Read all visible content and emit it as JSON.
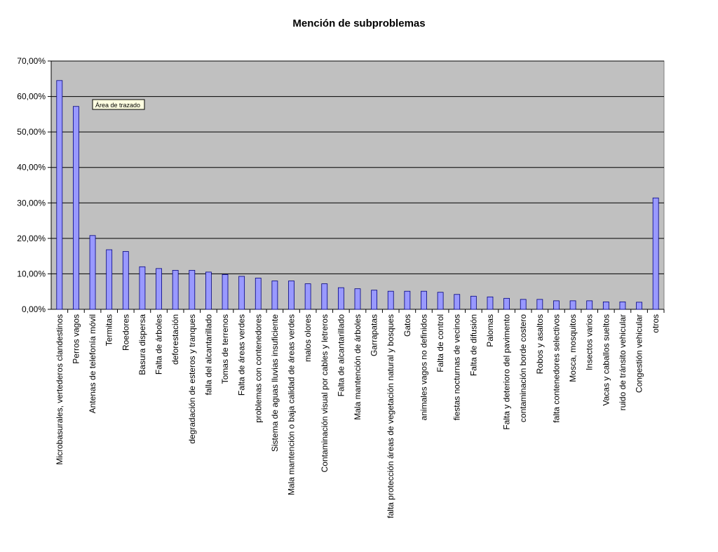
{
  "chart_data": {
    "type": "bar",
    "title": "Mención de subproblemas",
    "xlabel": "",
    "ylabel": "",
    "ylim": [
      0,
      70
    ],
    "y_tick_values": [
      0,
      10,
      20,
      30,
      40,
      50,
      60,
      70
    ],
    "y_tick_labels": [
      "0,00%",
      "10,00%",
      "20,00%",
      "30,00%",
      "40,00%",
      "50,00%",
      "60,00%",
      "70,00%"
    ],
    "grid": true,
    "legend": "none",
    "tooltip": "Área de trazado",
    "categories": [
      "Microbasurales, vertederos clandestinos",
      "Perros vagos",
      "Antenas de telefonía móvil",
      "Termitas",
      "Roedores",
      "Basura dispersa",
      "Falta de árboles",
      "deforestación",
      "degradación de esteros y tranques",
      "falla del alcantarillado",
      "Tomas de terrenos",
      "Falta de áreas verdes",
      "problemas con contenedores",
      "Sistema de aguas lluvias insuficiente",
      "Mala mantención o baja calidad de áreas verdes",
      "malos olores",
      "Contaminación visual por cables y letreros",
      "Falta de alcantarillado",
      "Mala mantención de árboles",
      "Garrapatas",
      "falta protección áreas de vegetación natural y bosques",
      "Gatos",
      "animales vagos no definidos",
      "Falta de control",
      "fiestas nocturnas de vecinos",
      "Falta de difusión",
      "Palomas",
      "Falta y deterioro del pavimento",
      "contaminación borde costero",
      "Robos y asaltos",
      "falta contenedores selectivos",
      "Mosca, mosquitos",
      "Insectos varios",
      "Vacas y caballos sueltos",
      "ruido de tránsito vehicular",
      "Congestión vehicular",
      "otros"
    ],
    "values": [
      64.5,
      57.2,
      20.8,
      16.8,
      16.3,
      12.0,
      11.5,
      11.0,
      11.0,
      10.5,
      9.8,
      9.3,
      8.8,
      8.0,
      8.0,
      7.2,
      7.2,
      6.1,
      5.8,
      5.4,
      5.1,
      5.1,
      5.1,
      4.8,
      4.2,
      3.7,
      3.5,
      3.1,
      2.8,
      2.8,
      2.4,
      2.4,
      2.4,
      2.1,
      2.1,
      2.0,
      31.4
    ],
    "colors": {
      "plot_background": "#c0c0c0",
      "bar_fill": "#9999ff",
      "bar_stroke": "#000080",
      "gridline": "#000000"
    }
  }
}
